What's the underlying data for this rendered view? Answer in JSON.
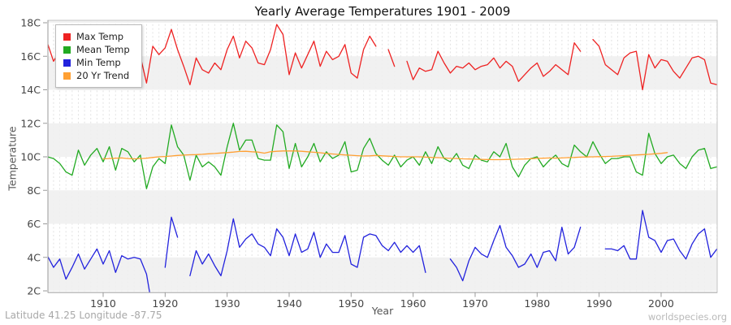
{
  "title": "Yearly Average Temperatures 1901 - 2009",
  "x_axis": {
    "label": "Year",
    "ticks": [
      1910,
      1920,
      1930,
      1940,
      1950,
      1960,
      1970,
      1980,
      1990,
      2000
    ],
    "range": [
      1901,
      2009
    ]
  },
  "y_axis": {
    "label": "Temperature",
    "ticks": [
      2,
      4,
      6,
      8,
      10,
      12,
      14,
      16,
      18
    ],
    "tick_suffix": "C",
    "range": [
      2,
      18
    ]
  },
  "legend": [
    {
      "label": "Max Temp",
      "color": "#ee2222"
    },
    {
      "label": "Mean Temp",
      "color": "#22aa22"
    },
    {
      "label": "Min Temp",
      "color": "#2222dd"
    },
    {
      "label": "20 Yr Trend",
      "color": "#ffa033"
    }
  ],
  "footer": {
    "left": "Latitude 41.25 Longitude -87.75",
    "right": "worldspecies.org"
  },
  "colors": {
    "band": "#efefef",
    "grid": "#e2e2e2",
    "border": "#c4c4c4",
    "axis": "#9a9a9a"
  },
  "chart_data": {
    "type": "line",
    "title": "Yearly Average Temperatures 1901 - 2009",
    "xlabel": "Year",
    "ylabel": "Temperature",
    "x_start": 1901,
    "x_end": 2009,
    "ylim": [
      2,
      18
    ],
    "grid": "vertical-dashed, alternating horizontal bands",
    "legend_position": "top-left",
    "series": [
      {
        "name": "Max Temp",
        "color": "#ee2222",
        "values": [
          16.8,
          15.7,
          16.3,
          15.2,
          16.0,
          17.4,
          14.8,
          16.1,
          16.4,
          15.5,
          16.5,
          14.6,
          16.3,
          16.2,
          15.6,
          16.0,
          14.4,
          16.6,
          16.1,
          16.5,
          17.6,
          16.4,
          15.4,
          14.3,
          15.9,
          15.2,
          15.0,
          15.6,
          15.2,
          16.4,
          17.2,
          15.9,
          16.9,
          16.5,
          15.6,
          15.5,
          16.4,
          17.9,
          17.3,
          14.9,
          16.2,
          15.3,
          16.1,
          16.9,
          15.4,
          16.3,
          15.8,
          16.0,
          16.7,
          15.0,
          14.7,
          16.4,
          17.2,
          16.6,
          null,
          16.4,
          15.4,
          null,
          15.7,
          14.6,
          15.3,
          15.1,
          15.2,
          16.3,
          15.6,
          15.0,
          15.4,
          15.3,
          15.6,
          15.2,
          15.4,
          15.5,
          15.9,
          15.3,
          15.7,
          15.4,
          14.5,
          14.9,
          15.3,
          15.6,
          14.8,
          15.1,
          15.5,
          15.2,
          14.9,
          16.8,
          16.3,
          null,
          17.0,
          16.6,
          15.5,
          15.2,
          14.9,
          15.9,
          16.2,
          16.3,
          14.0,
          16.1,
          15.3,
          15.8,
          15.7,
          15.1,
          14.7,
          15.3,
          15.9,
          16.0,
          15.8,
          14.4,
          14.3
        ]
      },
      {
        "name": "Mean Temp",
        "color": "#22aa22",
        "values": [
          10.0,
          9.9,
          9.6,
          9.1,
          8.9,
          10.4,
          9.5,
          10.1,
          10.5,
          9.7,
          10.6,
          9.2,
          10.5,
          10.3,
          9.7,
          10.1,
          8.1,
          9.4,
          9.9,
          9.6,
          11.9,
          10.6,
          10.1,
          8.6,
          10.1,
          9.4,
          9.7,
          9.4,
          8.9,
          10.6,
          12.0,
          10.4,
          11.0,
          11.0,
          9.9,
          9.8,
          9.8,
          11.9,
          11.5,
          9.3,
          10.8,
          9.4,
          10.0,
          10.8,
          9.7,
          10.3,
          9.9,
          10.1,
          10.9,
          9.1,
          9.2,
          10.5,
          11.1,
          10.2,
          9.8,
          9.5,
          10.1,
          9.4,
          9.8,
          10.0,
          9.5,
          10.3,
          9.6,
          10.6,
          9.9,
          9.7,
          10.2,
          9.5,
          9.3,
          10.1,
          9.8,
          9.7,
          10.3,
          10.0,
          10.8,
          9.4,
          8.8,
          9.5,
          9.9,
          10.0,
          9.4,
          9.8,
          10.1,
          9.6,
          9.4,
          10.7,
          10.3,
          10.0,
          10.9,
          10.2,
          9.6,
          9.9,
          9.9,
          10.0,
          10.0,
          9.1,
          8.9,
          11.4,
          10.2,
          9.6,
          10.0,
          10.1,
          9.6,
          9.3,
          10.0,
          10.4,
          10.5,
          9.3,
          9.4
        ]
      },
      {
        "name": "Min Temp",
        "color": "#2222dd",
        "values": [
          4.1,
          3.4,
          3.9,
          2.7,
          3.4,
          4.2,
          3.3,
          3.9,
          4.5,
          3.6,
          4.4,
          3.1,
          4.1,
          3.9,
          4.0,
          3.9,
          3.0,
          0.8,
          null,
          3.4,
          6.4,
          5.2,
          null,
          2.9,
          4.4,
          3.6,
          4.2,
          3.5,
          2.9,
          4.4,
          6.3,
          4.6,
          5.1,
          5.4,
          4.8,
          4.6,
          4.1,
          5.7,
          5.2,
          4.1,
          5.4,
          4.3,
          4.5,
          5.5,
          4.0,
          4.8,
          4.3,
          4.3,
          5.3,
          3.6,
          3.4,
          5.2,
          5.4,
          5.3,
          4.7,
          4.4,
          4.9,
          4.3,
          4.7,
          4.3,
          4.7,
          3.1,
          null,
          null,
          null,
          3.9,
          3.4,
          2.6,
          3.8,
          4.6,
          4.2,
          4.0,
          5.0,
          5.9,
          4.6,
          4.1,
          3.4,
          3.6,
          4.2,
          3.4,
          4.3,
          4.4,
          3.8,
          5.8,
          4.2,
          4.6,
          5.8,
          null,
          null,
          null,
          4.5,
          4.5,
          4.4,
          4.7,
          3.9,
          3.9,
          6.8,
          5.2,
          5.0,
          4.3,
          5.0,
          5.1,
          4.4,
          3.9,
          4.8,
          5.4,
          5.7,
          4.0,
          4.5
        ]
      },
      {
        "name": "20 Yr Trend",
        "color": "#ffa033",
        "values": [
          null,
          null,
          null,
          null,
          null,
          null,
          null,
          null,
          null,
          9.88,
          9.9,
          9.92,
          9.93,
          9.9,
          9.88,
          9.9,
          9.92,
          9.96,
          10.0,
          10.02,
          10.05,
          10.08,
          10.1,
          10.12,
          10.13,
          10.15,
          10.18,
          10.2,
          10.23,
          10.25,
          10.28,
          10.32,
          10.33,
          10.3,
          10.28,
          10.22,
          10.3,
          10.33,
          10.35,
          10.35,
          10.35,
          10.33,
          10.3,
          10.27,
          10.24,
          10.2,
          10.17,
          10.14,
          10.11,
          10.09,
          10.07,
          10.05,
          10.06,
          10.08,
          10.06,
          10.04,
          10.02,
          10.0,
          10.0,
          10.0,
          10.0,
          9.98,
          9.96,
          9.95,
          9.93,
          9.91,
          9.9,
          9.88,
          9.87,
          9.86,
          9.85,
          9.84,
          9.83,
          9.83,
          9.84,
          9.85,
          9.86,
          9.87,
          9.89,
          9.91,
          9.92,
          9.93,
          9.92,
          9.93,
          9.95,
          9.96,
          9.98,
          9.99,
          10.0,
          10.01,
          10.02,
          10.03,
          10.05,
          10.07,
          10.09,
          10.11,
          10.13,
          10.15,
          10.18,
          10.21,
          10.25,
          null,
          null,
          null,
          null,
          null,
          null,
          null,
          null
        ]
      }
    ]
  }
}
